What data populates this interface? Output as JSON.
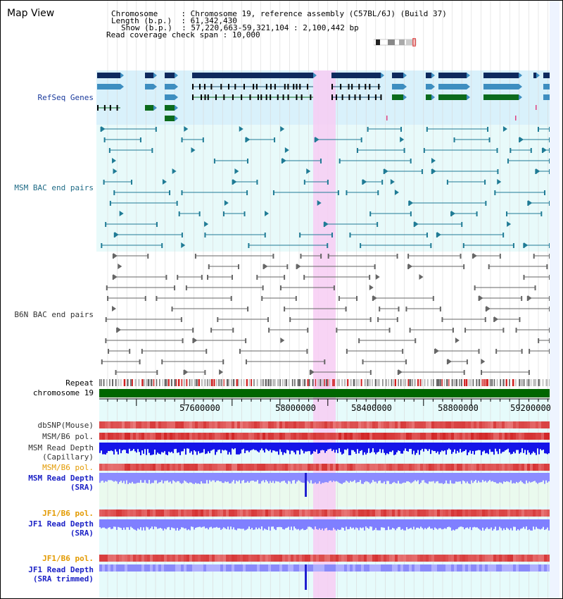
{
  "view_title": "Map View",
  "info": {
    "chromosome_label": "Chromosome",
    "chromosome_value": "Chromosome 19, reference assembly (C57BL/6J) (Build 37)",
    "length_label": "Length (b.p.)",
    "length_value": "61,342,430",
    "show_label": "Show (b.p.)",
    "show_value": "57,220,663-59,321,104 : 2,100,442 bp",
    "span_label": "Read coverage check span",
    "span_value": "10,000"
  },
  "tracks": {
    "refseq": "RefSeq Genes",
    "msm_bac": "MSM BAC end pairs",
    "b6n_bac": "B6N BAC end pairs",
    "repeat": "Repeat",
    "chromosome": "chromosome 19",
    "dbsnp": "dbSNP(Mouse)",
    "msm_b6_pol": "MSM/B6 pol.",
    "msm_read_depth_cap": "MSM Read Depth",
    "msm_read_depth_cap_sub": "(Capillary)",
    "msm_b6_pol_sra": "MSM/B6 pol.",
    "msm_read_depth_sra": "MSM Read Depth",
    "msm_read_depth_sra_sub": "(SRA)",
    "jf1_b6_pol": "JF1/B6 pol.",
    "jf1_read_depth": "JF1 Read Depth",
    "jf1_read_depth_sub": "(SRA)",
    "jf1_b6_pol_trim": "JF1/B6 pol.",
    "jf1_read_depth_trim": "JF1 Read Depth",
    "jf1_read_depth_trim_sub": "(SRA trimmed)"
  },
  "axis": {
    "ticks": [
      "57600000",
      "58000000",
      "58400000",
      "58800000",
      "59200000"
    ]
  },
  "colors": {
    "highlight": "#f9d2f5",
    "refseq_bg": "#d9f1fb",
    "refseq_gene": "#0f2a5e",
    "refseq_mid": "#3e8ec0",
    "refseq_green": "#0c6b1c",
    "msm_bac": "#1f7b95",
    "b6n_bac": "#666666",
    "chromosome": "#006600",
    "depth_blue": "#1010e0",
    "depth_light": "#8080ff"
  }
}
